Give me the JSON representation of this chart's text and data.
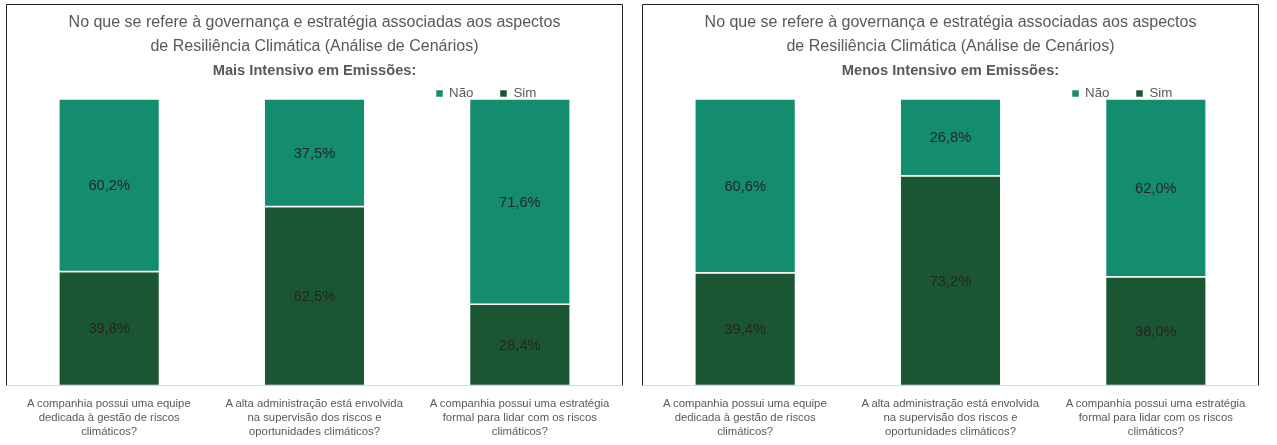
{
  "chart_data": [
    {
      "type": "bar",
      "title": "No que se refere à governança e estratégia associadas aos aspectos de Resiliência Climática (Análise de Cenários)",
      "subtitle": "Mais Intensivo em Emissões:",
      "stacked": true,
      "legend": "top right",
      "grid": false,
      "tick_labels": "x",
      "categories": [
        "A companhia possui uma equipe dedicada à gestão de riscos climáticos?",
        "A alta administração está envolvida na supervisão dos riscos e oportunidades climáticos?",
        "A companhia possui uma estratégia formal para lidar com os riscos climáticos?"
      ],
      "series": [
        {
          "name": "Sim",
          "color": "#1b5632",
          "values": [
            39.8,
            62.5,
            28.4
          ],
          "value_labels": [
            "39,8%",
            "62,5%",
            "28,4%"
          ]
        },
        {
          "name": "Não",
          "color": "#148c6e",
          "values": [
            60.2,
            37.5,
            71.6
          ],
          "value_labels": [
            "60,2%",
            "37,5%",
            "71,6%"
          ]
        }
      ]
    },
    {
      "type": "bar",
      "title": "No que se refere à governança e estratégia associadas aos aspectos de Resiliência Climática (Análise de Cenários)",
      "subtitle": "Menos Intensivo em Emissões:",
      "stacked": true,
      "legend": "top right",
      "grid": false,
      "tick_labels": "x",
      "categories": [
        "A companhia possui uma equipe dedicada à gestão de riscos climáticos?",
        "A alta administração está envolvida na supervisão dos riscos e oportunidades climáticos?",
        "A companhia possui uma estratégia formal para lidar com os riscos climáticos?"
      ],
      "series": [
        {
          "name": "Sim",
          "color": "#1b5632",
          "values": [
            39.4,
            73.2,
            38.0
          ],
          "value_labels": [
            "39,4%",
            "73,2%",
            "38,0%"
          ]
        },
        {
          "name": "Não",
          "color": "#148c6e",
          "values": [
            60.6,
            26.8,
            62.0
          ],
          "value_labels": [
            "60,6%",
            "26,8%",
            "62,0%"
          ]
        }
      ]
    }
  ]
}
